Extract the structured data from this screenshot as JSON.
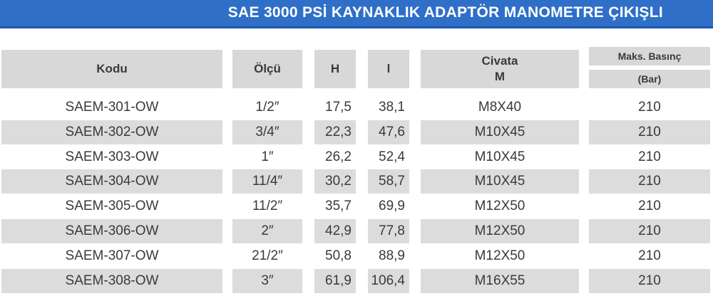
{
  "title": "SAE 3000 PSİ KAYNAKLIK ADAPTÖR MANOMETRE ÇIKIŞLI",
  "headers": {
    "kodu": "Kodu",
    "olcu": "Ölçü",
    "h": "H",
    "l": "l",
    "civata_line1": "Civata",
    "civata_line2": "M",
    "maks_line1": "Maks. Basınç",
    "maks_line2": "(Bar)"
  },
  "rows": [
    {
      "kodu": "SAEM-301-OW",
      "olcu": "1/2″",
      "h": "17,5",
      "l": "38,1",
      "civata": "M8X40",
      "basinc": "210"
    },
    {
      "kodu": "SAEM-302-OW",
      "olcu": "3/4″",
      "h": "22,3",
      "l": "47,6",
      "civata": "M10X45",
      "basinc": "210"
    },
    {
      "kodu": "SAEM-303-OW",
      "olcu": "1″",
      "h": "26,2",
      "l": "52,4",
      "civata": "M10X45",
      "basinc": "210"
    },
    {
      "kodu": "SAEM-304-OW",
      "olcu": "11/4″",
      "h": "30,2",
      "l": "58,7",
      "civata": "M10X45",
      "basinc": "210"
    },
    {
      "kodu": "SAEM-305-OW",
      "olcu": "11/2″",
      "h": "35,7",
      "l": "69,9",
      "civata": "M12X50",
      "basinc": "210"
    },
    {
      "kodu": "SAEM-306-OW",
      "olcu": "2″",
      "h": "42,9",
      "l": "77,8",
      "civata": "M12X50",
      "basinc": "210"
    },
    {
      "kodu": "SAEM-307-OW",
      "olcu": "21/2″",
      "h": "50,8",
      "l": "88,9",
      "civata": "M12X50",
      "basinc": "210"
    },
    {
      "kodu": "SAEM-308-OW",
      "olcu": "3″",
      "h": "61,9",
      "l": "106,4",
      "civata": "M16X55",
      "basinc": "210"
    }
  ]
}
